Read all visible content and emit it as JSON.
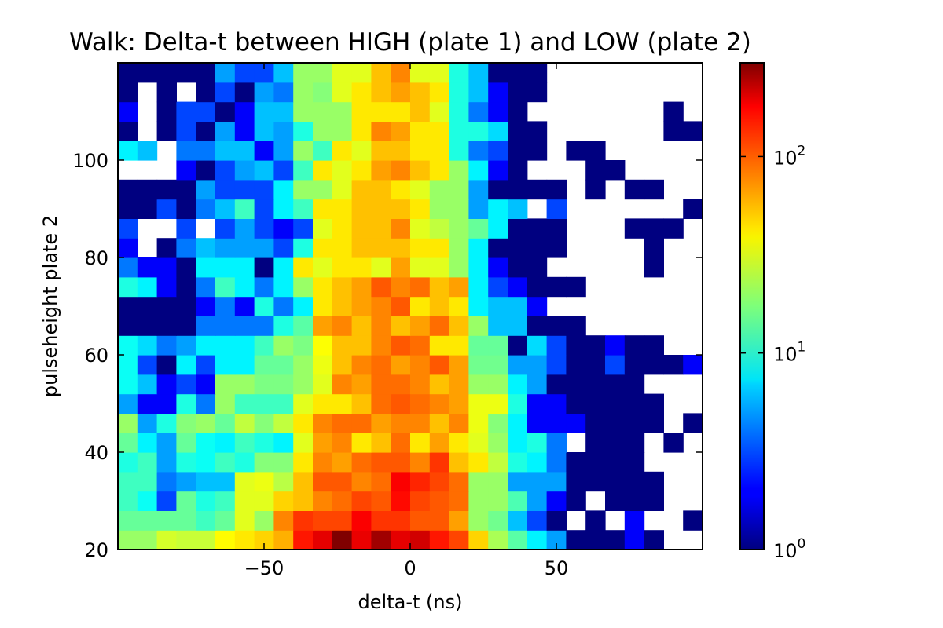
{
  "chart_data": {
    "type": "heatmap",
    "title": "Walk: Delta-t between HIGH (plate 1) and LOW (plate 2)",
    "xlabel": "delta-t (ns)",
    "ylabel": "pulseheight plate 2",
    "xlim": [
      -100,
      100
    ],
    "ylim": [
      20,
      120
    ],
    "x_ticks": [
      -50,
      0,
      50
    ],
    "x_tick_labels": [
      "−50",
      "0",
      "50"
    ],
    "y_ticks": [
      20,
      40,
      60,
      80,
      100
    ],
    "y_tick_labels": [
      "20",
      "40",
      "60",
      "80",
      "100"
    ],
    "color_scale": "log",
    "colormap": "jet",
    "color_range": [
      1,
      300
    ],
    "colorbar_ticks": [
      1,
      10,
      100
    ],
    "colorbar_tick_labels": [
      {
        "base": "10",
        "exp": "0"
      },
      {
        "base": "10",
        "exp": "1"
      },
      {
        "base": "10",
        "exp": "2"
      }
    ],
    "empty_color": "#ffffff",
    "grid": false,
    "bin_width_x": 6.67,
    "bin_width_y": 4,
    "counts": [
      [
        20,
        20,
        28,
        26,
        26,
        36,
        40,
        45,
        55,
        130,
        170,
        300,
        165,
        250,
        170,
        190,
        130,
        100,
        45,
        22,
        14,
        8,
        5,
        1,
        1,
        1,
        2,
        1,
        0,
        0
      ],
      [
        15,
        15,
        15,
        15,
        12,
        15,
        30,
        20,
        70,
        110,
        100,
        100,
        150,
        110,
        110,
        90,
        90,
        60,
        20,
        16,
        6,
        3,
        1,
        0,
        1,
        0,
        2,
        0,
        0,
        1
      ],
      [
        12,
        9,
        3,
        15,
        10,
        12,
        30,
        30,
        45,
        50,
        70,
        80,
        100,
        90,
        140,
        100,
        90,
        80,
        20,
        20,
        13,
        5,
        2,
        1,
        0,
        1,
        1,
        1,
        0,
        0
      ],
      [
        12,
        12,
        4,
        5,
        6,
        6,
        30,
        32,
        24,
        50,
        90,
        90,
        70,
        80,
        150,
        120,
        100,
        80,
        20,
        20,
        5,
        5,
        5,
        1,
        1,
        1,
        1,
        1,
        0,
        0
      ],
      [
        10,
        12,
        5,
        10,
        9,
        12,
        10,
        18,
        18,
        40,
        70,
        60,
        80,
        90,
        90,
        70,
        110,
        50,
        40,
        25,
        10,
        8,
        4,
        1,
        1,
        1,
        1,
        0,
        0,
        0
      ],
      [
        15,
        8,
        5,
        15,
        9,
        8,
        12,
        10,
        8,
        30,
        60,
        70,
        40,
        50,
        80,
        40,
        60,
        40,
        30,
        20,
        8,
        10,
        4,
        0,
        1,
        1,
        1,
        0,
        1,
        0
      ],
      [
        20,
        5,
        10,
        18,
        20,
        15,
        25,
        18,
        25,
        40,
        70,
        80,
        80,
        60,
        70,
        70,
        50,
        70,
        32,
        18,
        8,
        2,
        2,
        2,
        1,
        1,
        1,
        1,
        0,
        1
      ],
      [
        5,
        2,
        2,
        10,
        4,
        20,
        12,
        12,
        12,
        30,
        40,
        40,
        50,
        80,
        90,
        80,
        70,
        60,
        32,
        32,
        10,
        2,
        2,
        1,
        1,
        1,
        1,
        1,
        0,
        0
      ],
      [
        9,
        6,
        2,
        3,
        2,
        20,
        20,
        17,
        17,
        20,
        30,
        70,
        60,
        80,
        80,
        70,
        50,
        60,
        20,
        20,
        8,
        5,
        1,
        1,
        1,
        1,
        1,
        0,
        0,
        0
      ],
      [
        9,
        3,
        1,
        8,
        3,
        8,
        8,
        15,
        15,
        20,
        32,
        50,
        70,
        80,
        60,
        70,
        90,
        60,
        16,
        16,
        5,
        5,
        3,
        1,
        1,
        3,
        1,
        1,
        1,
        2
      ],
      [
        9,
        7,
        4,
        5,
        8,
        8,
        8,
        12,
        20,
        17,
        35,
        50,
        50,
        70,
        90,
        80,
        40,
        40,
        15,
        15,
        1,
        7,
        3,
        1,
        1,
        2,
        1,
        1,
        0,
        0
      ],
      [
        1,
        1,
        1,
        1,
        4,
        4,
        4,
        4,
        10,
        14,
        60,
        70,
        50,
        70,
        50,
        60,
        80,
        50,
        20,
        6,
        6,
        1,
        1,
        1,
        0,
        0,
        0,
        0,
        0,
        0
      ],
      [
        1,
        1,
        1,
        1,
        2,
        4,
        2,
        10,
        4,
        8,
        40,
        50,
        60,
        70,
        90,
        40,
        50,
        40,
        8,
        6,
        6,
        2,
        0,
        0,
        0,
        0,
        0,
        0,
        0,
        0
      ],
      [
        10,
        8,
        2,
        1,
        4,
        12,
        8,
        4,
        8,
        20,
        40,
        50,
        60,
        90,
        70,
        80,
        50,
        60,
        8,
        3,
        2,
        1,
        1,
        1,
        0,
        0,
        0,
        0,
        0,
        0
      ],
      [
        4,
        2,
        2,
        1,
        8,
        8,
        8,
        1,
        8,
        40,
        30,
        40,
        40,
        30,
        60,
        30,
        30,
        20,
        8,
        2,
        1,
        1,
        0,
        0,
        0,
        0,
        0,
        1,
        0,
        0
      ],
      [
        2,
        0,
        1,
        4,
        6,
        5,
        5,
        5,
        3,
        10,
        40,
        40,
        50,
        50,
        50,
        40,
        40,
        20,
        8,
        1,
        1,
        1,
        1,
        0,
        0,
        0,
        0,
        1,
        0,
        0
      ],
      [
        3,
        0,
        0,
        3,
        0,
        3,
        5,
        3,
        2,
        3,
        30,
        40,
        50,
        50,
        70,
        30,
        25,
        20,
        15,
        8,
        1,
        1,
        1,
        0,
        0,
        0,
        1,
        1,
        1,
        0
      ],
      [
        1,
        1,
        3,
        1,
        4,
        6,
        12,
        3,
        8,
        12,
        40,
        40,
        50,
        50,
        50,
        40,
        20,
        20,
        5,
        8,
        6,
        0,
        3,
        0,
        0,
        0,
        0,
        0,
        0,
        1
      ],
      [
        1,
        1,
        1,
        1,
        5,
        3,
        3,
        3,
        8,
        20,
        20,
        30,
        50,
        50,
        40,
        30,
        20,
        20,
        5,
        1,
        1,
        1,
        1,
        0,
        1,
        0,
        1,
        1,
        0,
        0
      ],
      [
        0,
        0,
        0,
        2,
        1,
        3,
        5,
        6,
        3,
        12,
        40,
        30,
        40,
        60,
        70,
        50,
        40,
        20,
        8,
        2,
        1,
        0,
        0,
        0,
        1,
        1,
        0,
        0,
        0,
        0
      ],
      [
        8,
        6,
        0,
        4,
        4,
        6,
        6,
        2,
        5,
        20,
        12,
        40,
        30,
        50,
        50,
        40,
        40,
        10,
        4,
        3,
        1,
        1,
        0,
        1,
        1,
        0,
        0,
        0,
        0,
        0
      ],
      [
        1,
        0,
        1,
        3,
        1,
        5,
        2,
        6,
        5,
        10,
        20,
        20,
        40,
        70,
        60,
        40,
        40,
        10,
        10,
        7,
        1,
        1,
        0,
        0,
        0,
        0,
        0,
        0,
        1,
        1
      ],
      [
        2,
        0,
        1,
        3,
        3,
        1,
        2,
        6,
        6,
        20,
        20,
        20,
        40,
        40,
        40,
        50,
        30,
        10,
        4,
        2,
        1,
        0,
        0,
        0,
        0,
        0,
        0,
        0,
        1,
        0
      ],
      [
        1,
        0,
        1,
        0,
        1,
        3,
        1,
        5,
        4,
        20,
        18,
        30,
        40,
        50,
        60,
        50,
        40,
        10,
        6,
        2,
        1,
        1,
        0,
        0,
        0,
        0,
        0,
        0,
        0,
        0
      ],
      [
        1,
        1,
        1,
        1,
        1,
        5,
        3,
        3,
        6,
        20,
        20,
        30,
        30,
        50,
        70,
        30,
        30,
        10,
        6,
        1,
        1,
        1,
        0,
        0,
        0,
        0,
        0,
        0,
        0,
        0
      ]
    ]
  }
}
